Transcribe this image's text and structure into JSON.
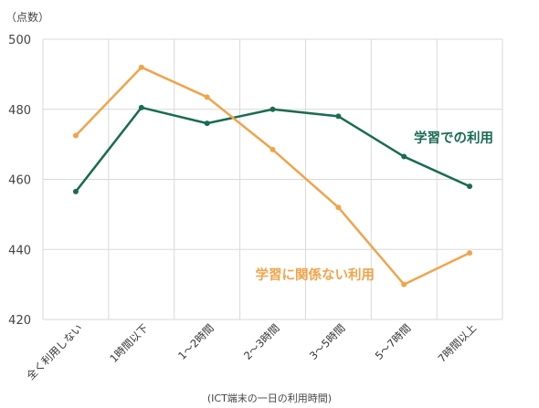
{
  "unit_label": "（点数）",
  "x_title": "(ICT端末の一日の利用時間)",
  "chart_data": {
    "type": "line",
    "categories": [
      "全く利用しない",
      "1時間以下",
      "1～2時間",
      "2～3時間",
      "3～5時間",
      "5～7時間",
      "7時間以上"
    ],
    "ylim": [
      420,
      500
    ],
    "yticks": [
      420,
      440,
      460,
      480,
      500
    ],
    "grid": true,
    "series": [
      {
        "name": "学習での利用",
        "color": "#1a6b52",
        "values": [
          456.5,
          480.5,
          476,
          480,
          478,
          466.5,
          458
        ]
      },
      {
        "name": "学習に関係ない利用",
        "color": "#f0a44b",
        "values": [
          472.5,
          492,
          483.5,
          468.5,
          452,
          430,
          439
        ]
      }
    ]
  }
}
